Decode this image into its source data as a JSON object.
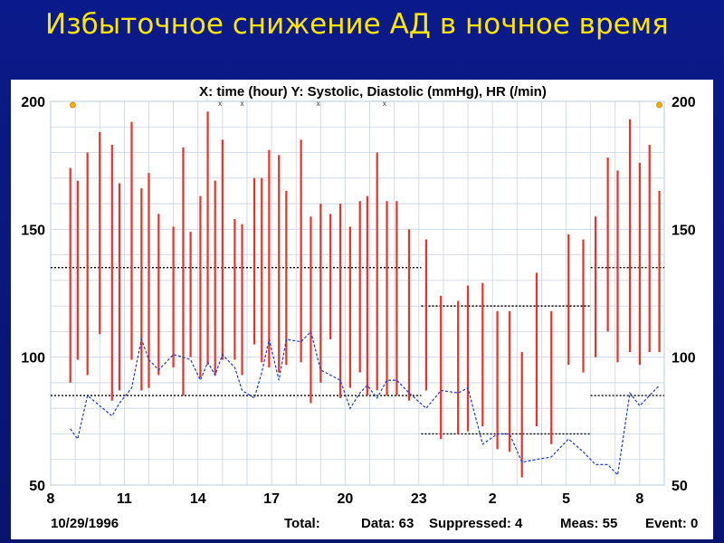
{
  "slide": {
    "title": "Избыточное снижение АД в ночное время"
  },
  "chart_data": {
    "type": "bar",
    "subtype": "range-bars with line",
    "header": "X: time (hour)  Y: Systolic, Diastolic (mmHg), HR (/min)",
    "ylim": [
      50,
      200
    ],
    "y_ticks": [
      200,
      150,
      100,
      50
    ],
    "x_tick_labels": [
      "8",
      "11",
      "14",
      "17",
      "20",
      "23",
      "2",
      "5",
      "8"
    ],
    "x_tick_hours": [
      8,
      11,
      14,
      17,
      20,
      23,
      26,
      29,
      32
    ],
    "xlim": [
      8,
      33
    ],
    "grid": true,
    "bar_color": "#e8322a",
    "hr_color": "#1a3cc8",
    "threshold_color": "#000000",
    "series": [
      {
        "name": "Systolic",
        "values": [
          174,
          169,
          180,
          188,
          183,
          168,
          192,
          166,
          172,
          156,
          151,
          182,
          149,
          163,
          196,
          169,
          185,
          154,
          152,
          170,
          170,
          181,
          179,
          165,
          185,
          155,
          160,
          156,
          160,
          151,
          161,
          163,
          180,
          161,
          161,
          150,
          146,
          124,
          122,
          128,
          129,
          118,
          118,
          102,
          133,
          118,
          148,
          146,
          155,
          178,
          173,
          193,
          176,
          183,
          165
        ]
      },
      {
        "name": "Diastolic",
        "values": [
          90,
          99,
          93,
          109,
          83,
          87,
          99,
          87,
          88,
          93,
          96,
          85,
          100,
          92,
          97,
          93,
          99,
          99,
          93,
          105,
          98,
          96,
          94,
          97,
          98,
          82,
          90,
          107,
          84,
          88,
          94,
          85,
          87,
          85,
          85,
          83,
          87,
          68,
          70,
          71,
          73,
          64,
          63,
          53,
          73,
          66,
          97,
          94,
          100,
          110,
          98,
          102,
          97,
          102,
          102
        ]
      },
      {
        "name": "HR",
        "values": [
          72,
          68,
          85,
          81,
          77,
          82,
          88,
          107,
          99,
          95,
          101,
          100,
          99,
          91,
          98,
          93,
          101,
          96,
          87,
          84,
          94,
          107,
          91,
          107,
          106,
          110,
          95,
          93,
          91,
          80,
          86,
          89,
          84,
          91,
          91,
          86,
          80,
          87,
          86,
          88,
          66,
          70,
          70,
          59,
          60,
          61,
          68,
          63,
          58,
          58,
          54,
          86,
          81,
          85,
          89
        ]
      }
    ],
    "hours": [
      8.8,
      9.1,
      9.5,
      10.0,
      10.5,
      10.8,
      11.3,
      11.7,
      12.0,
      12.4,
      13.0,
      13.4,
      13.7,
      14.1,
      14.4,
      14.7,
      15.0,
      15.5,
      15.8,
      16.3,
      16.6,
      16.9,
      17.3,
      17.6,
      18.2,
      18.6,
      19.0,
      19.4,
      19.8,
      20.2,
      20.6,
      20.9,
      21.3,
      21.7,
      22.1,
      22.6,
      23.3,
      23.9,
      24.6,
      25.0,
      25.6,
      26.2,
      26.7,
      27.2,
      27.8,
      28.4,
      29.1,
      29.7,
      30.2,
      30.7,
      31.1,
      31.6,
      32.0,
      32.4,
      32.8
    ],
    "thresholds": [
      {
        "name": "day systolic limit",
        "value": 135,
        "from_hour": 8,
        "to_hour": 23.1
      },
      {
        "name": "day diastolic limit",
        "value": 85,
        "from_hour": 8,
        "to_hour": 23.1
      },
      {
        "name": "night systolic limit",
        "value": 120,
        "from_hour": 23.1,
        "to_hour": 30.0
      },
      {
        "name": "night diastolic limit",
        "value": 70,
        "from_hour": 23.1,
        "to_hour": 30.0
      },
      {
        "name": "morning systolic limit",
        "value": 135,
        "from_hour": 30.0,
        "to_hour": 33
      },
      {
        "name": "morning diastolic limit",
        "value": 85,
        "from_hour": 30.0,
        "to_hour": 33
      }
    ],
    "markers_top": [
      8.9,
      32.8
    ],
    "event_marks_hours": [
      14.9,
      15.8,
      18.9,
      21.6
    ]
  },
  "footer": {
    "date": "10/29/1996",
    "total_label": "Total:",
    "data": "Data: 63",
    "suppressed": "Suppressed: 4",
    "meas": "Meas: 55",
    "event": "Event: 0"
  }
}
